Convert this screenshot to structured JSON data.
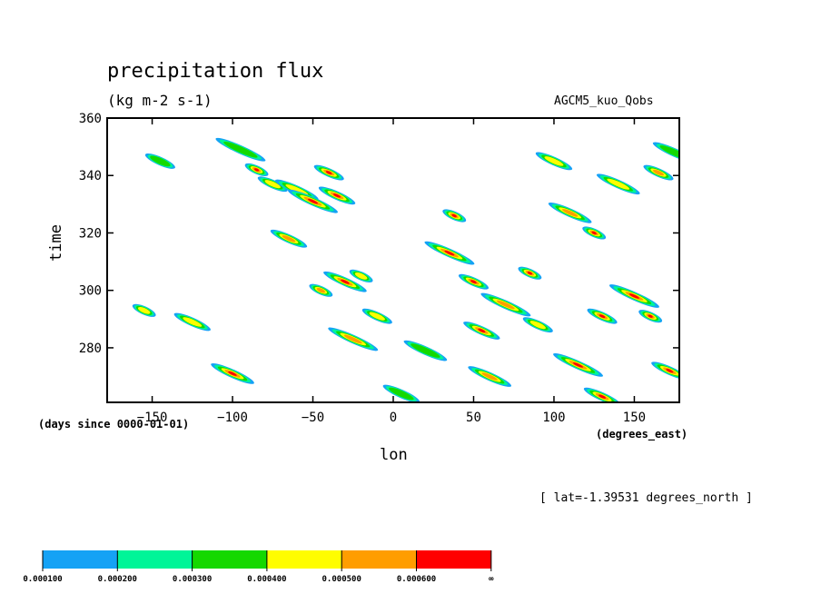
{
  "chart_data": {
    "type": "heatmap",
    "title": "precipitation flux",
    "units": "(kg m-2 s-1)",
    "model": "AGCM5_kuo_Qobs",
    "xlabel": "lon",
    "x_units": "(degrees_east)",
    "ylabel": "time",
    "y_units": "(days since 0000-01-01)",
    "slice_note": "[ lat=-1.39531 degrees_north ]",
    "xlim": [
      -178,
      178
    ],
    "ylim": [
      261,
      360
    ],
    "x_ticks": [
      -150,
      -100,
      -50,
      0,
      50,
      100,
      150
    ],
    "y_ticks": [
      280,
      300,
      320,
      340,
      360
    ],
    "grid": false,
    "legend": {
      "placement": "bottom-left",
      "bins": [
        {
          "min": 0.0001,
          "max": 0.0002,
          "color": "#15a2f5"
        },
        {
          "min": 0.0002,
          "max": 0.0003,
          "color": "#00f598"
        },
        {
          "min": 0.0003,
          "max": 0.0004,
          "color": "#15d800"
        },
        {
          "min": 0.0004,
          "max": 0.0005,
          "color": "#fffd00"
        },
        {
          "min": 0.0005,
          "max": 0.0006,
          "color": "#ff9d00"
        },
        {
          "min": 0.0006,
          "max": null,
          "color": "#ff0000"
        }
      ],
      "labels": [
        "0.000100",
        "0.000200",
        "0.000300",
        "0.000400",
        "0.000500",
        "0.000600",
        "∞"
      ]
    },
    "features": [
      {
        "lon": -155,
        "time": 293,
        "level": 4
      },
      {
        "lon": -145,
        "time": 345,
        "level": 3
      },
      {
        "lon": -125,
        "time": 289,
        "level": 4
      },
      {
        "lon": -100,
        "time": 271,
        "level": 6
      },
      {
        "lon": -95,
        "time": 349,
        "level": 3
      },
      {
        "lon": -85,
        "time": 342,
        "level": 6
      },
      {
        "lon": -75,
        "time": 337,
        "level": 4
      },
      {
        "lon": -65,
        "time": 318,
        "level": 5
      },
      {
        "lon": -60,
        "time": 335,
        "level": 4
      },
      {
        "lon": -50,
        "time": 331,
        "level": 6
      },
      {
        "lon": -45,
        "time": 300,
        "level": 5
      },
      {
        "lon": -40,
        "time": 341,
        "level": 6
      },
      {
        "lon": -35,
        "time": 333,
        "level": 6
      },
      {
        "lon": -30,
        "time": 303,
        "level": 6
      },
      {
        "lon": -25,
        "time": 283,
        "level": 5
      },
      {
        "lon": -20,
        "time": 305,
        "level": 4
      },
      {
        "lon": -10,
        "time": 291,
        "level": 4
      },
      {
        "lon": 5,
        "time": 264,
        "level": 3
      },
      {
        "lon": 20,
        "time": 279,
        "level": 3
      },
      {
        "lon": 35,
        "time": 313,
        "level": 6
      },
      {
        "lon": 38,
        "time": 326,
        "level": 6
      },
      {
        "lon": 50,
        "time": 303,
        "level": 6
      },
      {
        "lon": 55,
        "time": 286,
        "level": 6
      },
      {
        "lon": 60,
        "time": 270,
        "level": 5
      },
      {
        "lon": 70,
        "time": 295,
        "level": 5
      },
      {
        "lon": 85,
        "time": 306,
        "level": 6
      },
      {
        "lon": 90,
        "time": 288,
        "level": 4
      },
      {
        "lon": 100,
        "time": 345,
        "level": 4
      },
      {
        "lon": 110,
        "time": 327,
        "level": 5
      },
      {
        "lon": 115,
        "time": 274,
        "level": 6
      },
      {
        "lon": 125,
        "time": 320,
        "level": 6
      },
      {
        "lon": 130,
        "time": 291,
        "level": 6
      },
      {
        "lon": 130,
        "time": 263,
        "level": 6
      },
      {
        "lon": 140,
        "time": 337,
        "level": 4
      },
      {
        "lon": 150,
        "time": 298,
        "level": 6
      },
      {
        "lon": 160,
        "time": 291,
        "level": 6
      },
      {
        "lon": 165,
        "time": 341,
        "level": 5
      },
      {
        "lon": 172,
        "time": 272,
        "level": 6
      },
      {
        "lon": 175,
        "time": 348,
        "level": 3
      }
    ]
  }
}
